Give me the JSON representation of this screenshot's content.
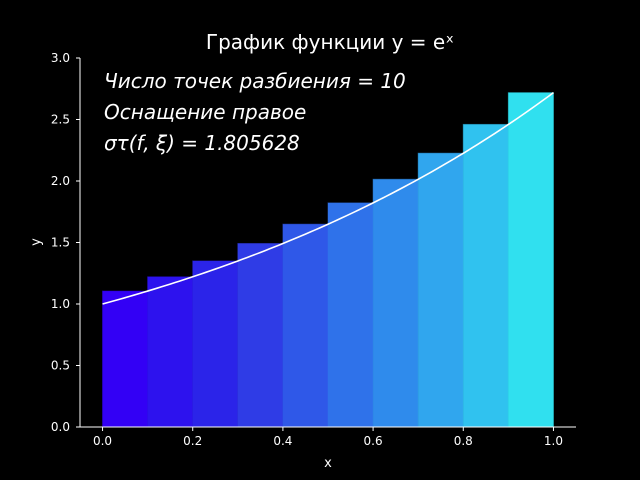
{
  "chart_data": {
    "type": "bar",
    "title": "График функции y = eˣ",
    "xlabel": "x",
    "ylabel": "y",
    "xlim": [
      -0.05,
      1.05
    ],
    "ylim": [
      0,
      3.0
    ],
    "xticks": [
      "0.0",
      "0.2",
      "0.4",
      "0.6",
      "0.8",
      "1.0"
    ],
    "yticks": [
      "0.0",
      "0.5",
      "1.0",
      "1.5",
      "2.0",
      "2.5",
      "3.0"
    ],
    "grid": false,
    "bars": {
      "x_left": [
        0.0,
        0.1,
        0.2,
        0.3,
        0.4,
        0.5,
        0.6,
        0.7,
        0.8,
        0.9
      ],
      "width": 0.1,
      "values": [
        1.105,
        1.221,
        1.35,
        1.492,
        1.649,
        1.822,
        2.014,
        2.226,
        2.46,
        2.718
      ],
      "colors": [
        "#3300f5",
        "#2d12ee",
        "#2b24e9",
        "#2f3ce6",
        "#2f58e8",
        "#2f72ea",
        "#2f8bec",
        "#30a6ee",
        "#30c2ef",
        "#30e0ef"
      ]
    },
    "curve": {
      "function": "exp",
      "x_range": [
        0.0,
        1.0
      ],
      "color": "#ffffff"
    },
    "annotations": [
      "Число точек разбиения  =  10",
      "Оснащение правое",
      "στ(f, ξ) = 1.805628"
    ]
  }
}
